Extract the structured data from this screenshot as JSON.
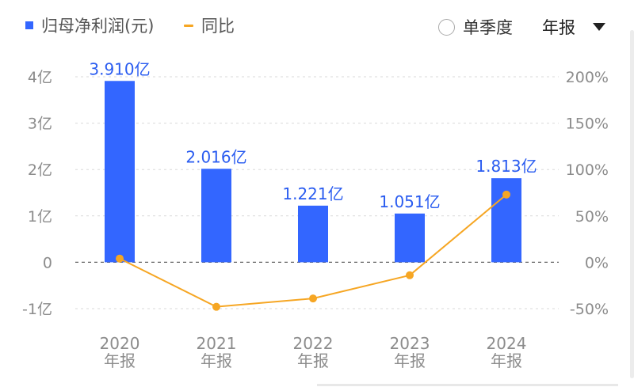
{
  "legend": {
    "bar_label": "归母净利润(元)",
    "line_label": "同比"
  },
  "controls": {
    "quarter_label": "单季度",
    "period_label": "年报"
  },
  "colors": {
    "bar": "#3366ff",
    "line": "#f6a623",
    "bar_label": "#2a5cf0",
    "axis_text": "#8c8c8c",
    "grid": "#d9d9d9",
    "zero_line": "#666666"
  },
  "chart_data": {
    "type": "bar",
    "categories": [
      [
        "2020",
        "年报"
      ],
      [
        "2021",
        "年报"
      ],
      [
        "2022",
        "年报"
      ],
      [
        "2023",
        "年报"
      ],
      [
        "2024",
        "年报"
      ]
    ],
    "series": [
      {
        "name": "归母净利润(元)",
        "type": "bar",
        "axis": "left",
        "values": [
          3.91,
          2.016,
          1.221,
          1.051,
          1.813
        ],
        "labels": [
          "3.910亿",
          "2.016亿",
          "1.221亿",
          "1.051亿",
          "1.813亿"
        ]
      },
      {
        "name": "同比",
        "type": "line",
        "axis": "right",
        "values": [
          4,
          -48,
          -39,
          -14,
          73
        ]
      }
    ],
    "left_axis": {
      "range": [
        -1,
        4
      ],
      "ticks": [
        4,
        3,
        2,
        1,
        0,
        -1
      ],
      "tick_labels": [
        "4亿",
        "3亿",
        "2亿",
        "1亿",
        "0",
        "-1亿"
      ]
    },
    "right_axis": {
      "range": [
        -50,
        200
      ],
      "ticks": [
        200,
        150,
        100,
        50,
        0,
        -50
      ],
      "tick_labels": [
        "200%",
        "150%",
        "100%",
        "50%",
        "0%",
        "-50%"
      ]
    },
    "grid": true
  }
}
